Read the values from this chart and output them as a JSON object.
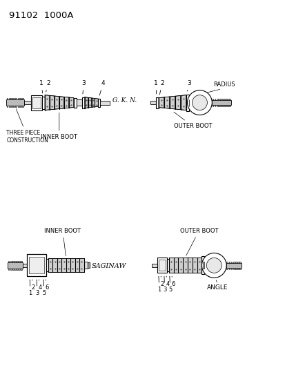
{
  "title_code": "91102  1000A",
  "background_color": "#ffffff",
  "line_color": "#000000",
  "fig_width": 4.14,
  "fig_height": 5.33,
  "top_left_labels": {
    "three_piece": "THREE PIECE\nCONSTRUCTION",
    "inner_boot": "INNER BOOT",
    "gkn": "G. K. N.",
    "numbers_top": [
      "1",
      "2",
      "3",
      "4"
    ]
  },
  "top_right_labels": {
    "radius": "RADIUS",
    "outer_boot": "OUTER BOOT",
    "numbers_top": [
      "1",
      "2",
      "3"
    ]
  },
  "bottom_left_labels": {
    "inner_boot": "INNER BOOT",
    "saginaw": "SAGINAW",
    "numbers": [
      "1",
      "2",
      "3",
      "4",
      "5",
      "6"
    ]
  },
  "bottom_right_labels": {
    "outer_boot": "OUTER BOOT",
    "angle": "ANGLE",
    "numbers": [
      "1",
      "2",
      "3",
      "4",
      "5",
      "6"
    ]
  }
}
